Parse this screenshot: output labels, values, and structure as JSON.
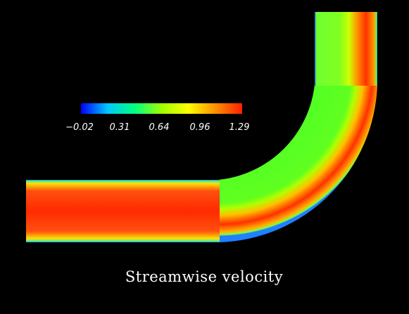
{
  "title": "Streamwise velocity",
  "colorbar": {
    "ticks": [
      "−0.02",
      "0.31",
      "0.64",
      "0.96",
      "1.29"
    ],
    "min": -0.02,
    "max": 1.29,
    "stops": [
      "#0000ff",
      "#00c8ff",
      "#00ff80",
      "#a0ff00",
      "#ffff00",
      "#ff9000",
      "#ff2000"
    ]
  },
  "colors": {
    "background": "#000000",
    "text": "#ffffff"
  }
}
